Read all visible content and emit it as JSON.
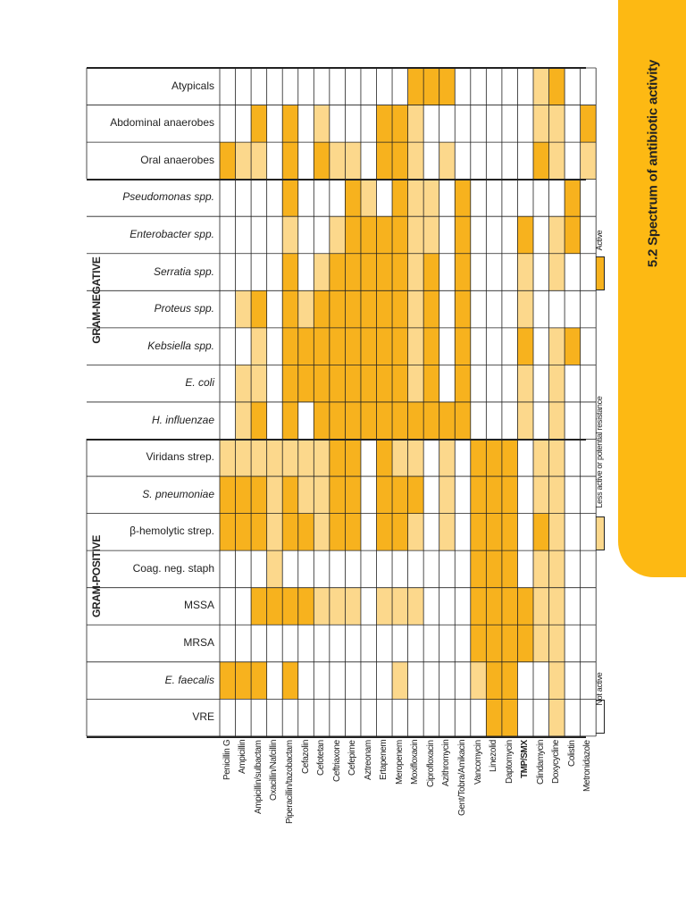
{
  "header": {
    "title": "5.2 Spectrum of antibiotic activity"
  },
  "legend": [
    {
      "label": "Active",
      "color": "#F7B21E"
    },
    {
      "label": "Less active or potential resistance",
      "color": "#FCD88C"
    },
    {
      "label": "Not active",
      "color": "#FFFFFF"
    }
  ],
  "groups": [
    {
      "label": "GRAM-NEGATIVE"
    },
    {
      "label": "GRAM-POSITIVE"
    }
  ],
  "columns": [
    "Penicillin G",
    "Ampicillin",
    "Ampicillin/sulbactam",
    "Oxacillin/Nafcillin",
    "Piperacillin/tazobactam",
    "Cefazolin",
    "Cefotetan",
    "Ceftriaxone",
    "Cefepime",
    "Aztreonam",
    "Ertapenem",
    "Meropenem",
    "Moxifloxacin",
    "Ciprofloxacin",
    "Azithromycin",
    "Gent/Tobra/Amikacin",
    "Vancomycin",
    "Linezolid",
    "Daptomycin",
    "TMP/SMX",
    "Clindamycin",
    "Doxycycline",
    "Colistin",
    "Metronidazole"
  ],
  "rows": [
    {
      "label": "Atypicals",
      "italic": false,
      "cells": [
        0,
        0,
        0,
        0,
        0,
        0,
        0,
        0,
        0,
        0,
        0,
        0,
        2,
        2,
        2,
        0,
        0,
        0,
        0,
        0,
        1,
        2,
        0,
        0
      ]
    },
    {
      "label": "Abdominal anaerobes",
      "italic": false,
      "cells": [
        0,
        0,
        2,
        0,
        2,
        0,
        1,
        0,
        0,
        0,
        2,
        2,
        1,
        0,
        0,
        0,
        0,
        0,
        0,
        0,
        1,
        1,
        0,
        2
      ]
    },
    {
      "label": "Oral anaerobes",
      "italic": false,
      "cells": [
        2,
        1,
        1,
        0,
        2,
        0,
        2,
        1,
        1,
        0,
        2,
        2,
        1,
        0,
        1,
        0,
        0,
        0,
        0,
        0,
        2,
        1,
        0,
        1
      ]
    },
    {
      "label": "Pseudomonas spp.",
      "italic": true,
      "cells": [
        0,
        0,
        0,
        0,
        2,
        0,
        0,
        0,
        2,
        1,
        0,
        2,
        1,
        1,
        0,
        2,
        0,
        0,
        0,
        0,
        0,
        0,
        2,
        0
      ]
    },
    {
      "label": "Enterobacter spp.",
      "italic": true,
      "cells": [
        0,
        0,
        0,
        0,
        1,
        0,
        0,
        1,
        2,
        2,
        2,
        2,
        1,
        1,
        0,
        2,
        0,
        0,
        0,
        2,
        0,
        1,
        2,
        0
      ]
    },
    {
      "label": "Serratia spp.",
      "italic": true,
      "cells": [
        0,
        0,
        0,
        0,
        2,
        0,
        1,
        2,
        2,
        2,
        2,
        2,
        1,
        2,
        0,
        2,
        0,
        0,
        0,
        1,
        0,
        1,
        0,
        0
      ]
    },
    {
      "label": "Proteus spp.",
      "italic": true,
      "cells": [
        0,
        1,
        2,
        0,
        2,
        1,
        2,
        2,
        2,
        2,
        2,
        2,
        1,
        2,
        0,
        2,
        0,
        0,
        0,
        1,
        0,
        0,
        0,
        0
      ]
    },
    {
      "label": "Kebsiella spp.",
      "italic": true,
      "cells": [
        0,
        0,
        1,
        0,
        2,
        2,
        2,
        2,
        2,
        2,
        2,
        2,
        1,
        2,
        0,
        2,
        0,
        0,
        0,
        2,
        0,
        1,
        2,
        0
      ]
    },
    {
      "label": "E. coli",
      "italic": true,
      "cells": [
        0,
        1,
        1,
        0,
        2,
        2,
        2,
        2,
        2,
        2,
        2,
        2,
        1,
        2,
        0,
        2,
        0,
        0,
        0,
        1,
        0,
        1,
        0,
        0
      ]
    },
    {
      "label": "H. influenzae",
      "italic": true,
      "cells": [
        0,
        1,
        2,
        0,
        2,
        0,
        2,
        2,
        2,
        2,
        2,
        2,
        2,
        2,
        2,
        2,
        0,
        0,
        0,
        1,
        0,
        1,
        0,
        0
      ]
    },
    {
      "label": "Viridans strep.",
      "italic": false,
      "cells": [
        1,
        1,
        1,
        1,
        1,
        1,
        1,
        2,
        2,
        0,
        2,
        1,
        1,
        0,
        1,
        0,
        2,
        2,
        2,
        0,
        1,
        1,
        0,
        0
      ]
    },
    {
      "label": "S. pneumoniae",
      "italic": true,
      "cells": [
        2,
        2,
        2,
        1,
        2,
        1,
        1,
        2,
        2,
        0,
        2,
        2,
        2,
        0,
        1,
        0,
        2,
        2,
        2,
        0,
        1,
        1,
        0,
        0
      ]
    },
    {
      "label": "β-hemolytic strep.",
      "italic": false,
      "cells": [
        2,
        2,
        2,
        1,
        2,
        2,
        1,
        2,
        2,
        0,
        2,
        2,
        1,
        0,
        1,
        0,
        2,
        2,
        2,
        0,
        2,
        1,
        0,
        0
      ]
    },
    {
      "label": "Coag. neg. staph",
      "italic": false,
      "cells": [
        0,
        0,
        0,
        1,
        0,
        0,
        0,
        0,
        0,
        0,
        0,
        0,
        0,
        0,
        0,
        0,
        2,
        2,
        2,
        0,
        1,
        1,
        0,
        0
      ]
    },
    {
      "label": "MSSA",
      "italic": false,
      "cells": [
        0,
        0,
        2,
        2,
        2,
        2,
        1,
        1,
        1,
        0,
        1,
        1,
        1,
        0,
        0,
        0,
        2,
        2,
        2,
        2,
        1,
        1,
        0,
        0
      ]
    },
    {
      "label": "MRSA",
      "italic": false,
      "cells": [
        0,
        0,
        0,
        0,
        0,
        0,
        0,
        0,
        0,
        0,
        0,
        0,
        0,
        0,
        0,
        0,
        2,
        2,
        2,
        2,
        1,
        1,
        0,
        0
      ]
    },
    {
      "label": "E. faecalis",
      "italic": true,
      "cells": [
        2,
        2,
        2,
        0,
        2,
        0,
        0,
        0,
        0,
        0,
        0,
        1,
        0,
        0,
        0,
        0,
        1,
        2,
        2,
        0,
        0,
        1,
        0,
        0
      ]
    },
    {
      "label": "VRE",
      "italic": false,
      "cells": [
        0,
        0,
        0,
        0,
        0,
        0,
        0,
        0,
        0,
        0,
        0,
        0,
        0,
        0,
        0,
        0,
        0,
        2,
        2,
        0,
        0,
        1,
        0,
        0
      ]
    }
  ]
}
